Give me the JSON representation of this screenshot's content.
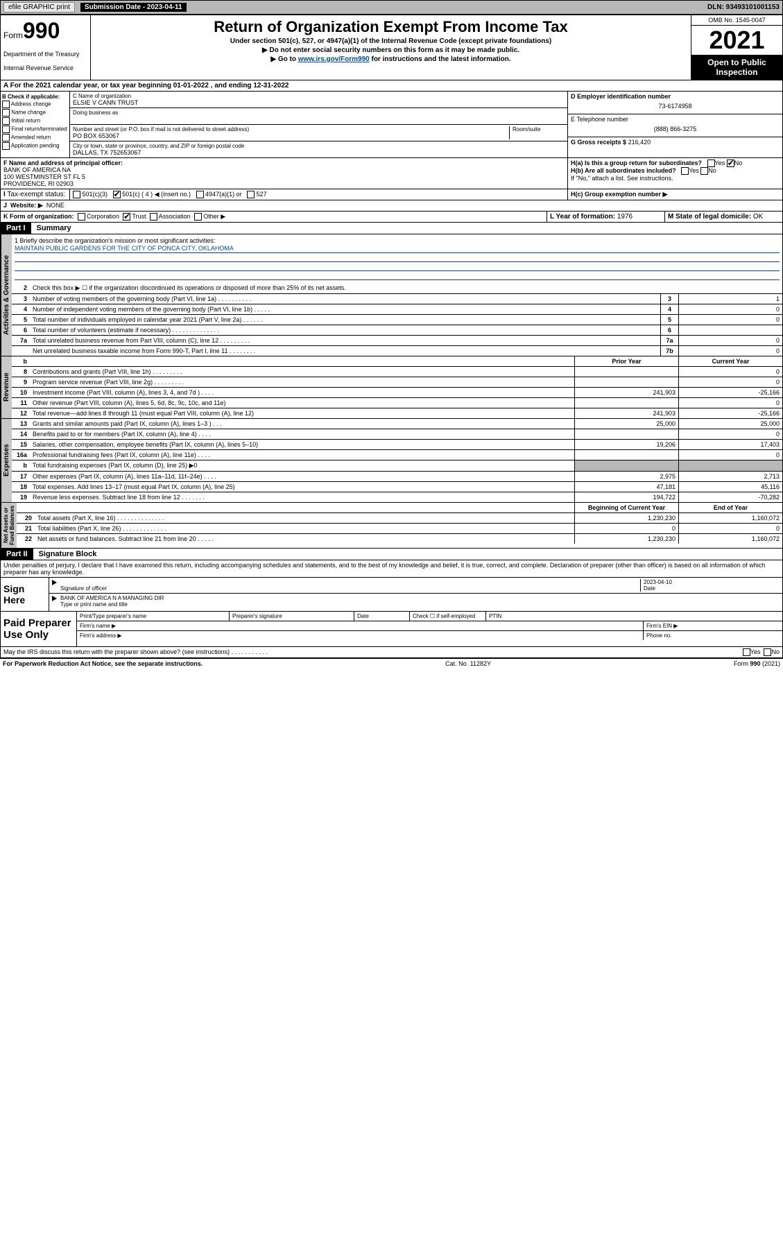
{
  "top": {
    "efile": "efile GRAPHIC print",
    "sub_label": "Submission Date - 2023-04-11",
    "dln": "DLN: 93493101001153"
  },
  "header": {
    "form_prefix": "Form",
    "form_num": "990",
    "dept": "Department of the Treasury",
    "irs": "Internal Revenue Service",
    "title": "Return of Organization Exempt From Income Tax",
    "sub1": "Under section 501(c), 527, or 4947(a)(1) of the Internal Revenue Code (except private foundations)",
    "sub2": "▶ Do not enter social security numbers on this form as it may be made public.",
    "sub3_pre": "▶ Go to ",
    "sub3_link": "www.irs.gov/Form990",
    "sub3_post": " for instructions and the latest information.",
    "omb": "OMB No. 1545-0047",
    "year": "2021",
    "open": "Open to Public Inspection"
  },
  "line_a": "A For the 2021 calendar year, or tax year beginning 01-01-2022    , and ending 12-31-2022",
  "box_b": {
    "title": "B Check if applicable:",
    "opts": [
      "Address change",
      "Name change",
      "Initial return",
      "Final return/terminated",
      "Amended return",
      "Application pending"
    ]
  },
  "box_c": {
    "label_name": "C Name of organization",
    "name": "ELSIE V CANN TRUST",
    "dba_label": "Doing business as",
    "addr_label": "Number and street (or P.O. box if mail is not delivered to street address)",
    "room_label": "Room/suite",
    "addr": "PO BOX 653067",
    "city_label": "City or town, state or province, country, and ZIP or foreign postal code",
    "city": "DALLAS, TX   752653067"
  },
  "box_d": {
    "label": "D Employer identification number",
    "val": "73-6174958"
  },
  "box_e": {
    "label": "E Telephone number",
    "val": "(888) 866-3275"
  },
  "box_g": {
    "label": "G Gross receipts $",
    "val": "216,420"
  },
  "box_f": {
    "label": "F  Name and address of principal officer:",
    "l1": "BANK OF AMERICA NA",
    "l2": "100 WESTMINSTER ST FL 5",
    "l3": "PROVIDENCE, RI  02903"
  },
  "box_h": {
    "a": "H(a)  Is this a group return for subordinates?",
    "b": "H(b)  Are all subordinates included?",
    "ifno": "If \"No,\" attach a list. See instructions.",
    "c": "H(c)  Group exemption number ▶"
  },
  "box_i": {
    "label": "Tax-exempt status:",
    "o1": "501(c)(3)",
    "o2": "501(c) ( 4 ) ◀ (insert no.)",
    "o3": "4947(a)(1) or",
    "o4": "527"
  },
  "box_j": {
    "label": "Website: ▶",
    "val": "NONE"
  },
  "box_k": "K Form of organization:",
  "k_opts": [
    "Corporation",
    "Trust",
    "Association",
    "Other ▶"
  ],
  "box_l": {
    "label": "L Year of formation:",
    "val": "1976"
  },
  "box_m": {
    "label": "M State of legal domicile:",
    "val": "OK"
  },
  "part1": {
    "hdr": "Part I",
    "title": "Summary"
  },
  "mission": {
    "label": "1   Briefly describe the organization's mission or most significant activities:",
    "text": "MAINTAIN PUBLIC GARDENS FOR THE CITY OF PONCA CITY, OKLAHOMA"
  },
  "line2": "Check this box ▶ ☐  if the organization discontinued its operations or disposed of more than 25% of its net assets.",
  "gov_rows": [
    {
      "n": "3",
      "label": "Number of voting members of the governing body (Part VI, line 1a)   .    .    .    .    .    .    .    .    .    .",
      "box": "3",
      "val": "1"
    },
    {
      "n": "4",
      "label": "Number of independent voting members of the governing body (Part VI, line 1b)   .    .    .    .    .",
      "box": "4",
      "val": "0"
    },
    {
      "n": "5",
      "label": "Total number of individuals employed in calendar year 2021 (Part V, line 2a)   .    .    .    .    .    .",
      "box": "5",
      "val": "0"
    },
    {
      "n": "6",
      "label": "Total number of volunteers (estimate if necessary)   .    .    .    .    .    .    .    .    .    .    .    .    .    .",
      "box": "6",
      "val": ""
    },
    {
      "n": "7a",
      "label": "Total unrelated business revenue from Part VIII, column (C), line 12   .    .    .    .    .    .    .    .    .",
      "box": "7a",
      "val": "0"
    },
    {
      "n": "",
      "label": "Net unrelated business taxable income from Form 990-T, Part I, line 11   .    .    .    .    .    .    .    .",
      "box": "7b",
      "val": "0"
    }
  ],
  "col_hdrs": {
    "b": "b",
    "prior": "Prior Year",
    "curr": "Current Year"
  },
  "rev_rows": [
    {
      "n": "8",
      "label": "Contributions and grants (Part VIII, line 1h)   .    .    .    .    .    .    .    .    .",
      "p": "",
      "c": "0"
    },
    {
      "n": "9",
      "label": "Program service revenue (Part VIII, line 2g)   .    .    .    .    .    .    .    .    .",
      "p": "",
      "c": "0"
    },
    {
      "n": "10",
      "label": "Investment income (Part VIII, column (A), lines 3, 4, and 7d )   .    .    .    .",
      "p": "241,903",
      "c": "-25,166"
    },
    {
      "n": "11",
      "label": "Other revenue (Part VIII, column (A), lines 5, 6d, 8c, 9c, 10c, and 11e)",
      "p": "",
      "c": "0"
    },
    {
      "n": "12",
      "label": "Total revenue—add lines 8 through 11 (must equal Part VIII, column (A), line 12)",
      "p": "241,903",
      "c": "-25,166"
    }
  ],
  "exp_rows": [
    {
      "n": "13",
      "label": "Grants and similar amounts paid (Part IX, column (A), lines 1–3 )   .    .    .",
      "p": "25,000",
      "c": "25,000"
    },
    {
      "n": "14",
      "label": "Benefits paid to or for members (Part IX, column (A), line 4)   .    .    .    .",
      "p": "",
      "c": "0"
    },
    {
      "n": "15",
      "label": "Salaries, other compensation, employee benefits (Part IX, column (A), lines 5–10)",
      "p": "19,206",
      "c": "17,403"
    },
    {
      "n": "16a",
      "label": "Professional fundraising fees (Part IX, column (A), line 11e)   .    .    .    .",
      "p": "",
      "c": "0"
    },
    {
      "n": "b",
      "label": "Total fundraising expenses (Part IX, column (D), line 25) ▶0",
      "p": "shaded",
      "c": "shaded"
    },
    {
      "n": "17",
      "label": "Other expenses (Part IX, column (A), lines 11a–11d, 11f–24e)   .    .    .    .",
      "p": "2,975",
      "c": "2,713"
    },
    {
      "n": "18",
      "label": "Total expenses. Add lines 13–17 (must equal Part IX, column (A), line 25)",
      "p": "47,181",
      "c": "45,116"
    },
    {
      "n": "19",
      "label": "Revenue less expenses. Subtract line 18 from line 12   .    .    .    .    .    .    .",
      "p": "194,722",
      "c": "-70,282"
    }
  ],
  "net_hdrs": {
    "beg": "Beginning of Current Year",
    "end": "End of Year"
  },
  "net_rows": [
    {
      "n": "20",
      "label": "Total assets (Part X, line 16)   .    .    .    .    .    .    .    .    .    .    .    .    .    .",
      "p": "1,230,230",
      "c": "1,160,072"
    },
    {
      "n": "21",
      "label": "Total liabilities (Part X, line 26)   .    .    .    .    .    .    .    .    .    .    .    .    .",
      "p": "0",
      "c": "0"
    },
    {
      "n": "22",
      "label": "Net assets or fund balances. Subtract line 21 from line 20   .    .    .    .    .",
      "p": "1,230,230",
      "c": "1,160,072"
    }
  ],
  "part2": {
    "hdr": "Part II",
    "title": "Signature Block"
  },
  "sig_decl": "Under penalties of perjury, I declare that I have examined this return, including accompanying schedules and statements, and to the best of my knowledge and belief, it is true, correct, and complete. Declaration of preparer (other than officer) is based on all information of which preparer has any knowledge.",
  "sign_here": "Sign Here",
  "sig_officer": "Signature of officer",
  "sig_date": "Date",
  "sig_date_val": "2023-04-10",
  "sig_name": "BANK OF AMERICA N A  MANAGING DIR",
  "sig_name_label": "Type or print name and title",
  "paid_prep": "Paid Preparer Use Only",
  "paid_hdrs": {
    "name": "Print/Type preparer's name",
    "sig": "Preparer's signature",
    "date": "Date",
    "check": "Check ☐ if self-employed",
    "ptin": "PTIN"
  },
  "firm_name": "Firm's name    ▶",
  "firm_ein": "Firm's EIN ▶",
  "firm_addr": "Firm's address ▶",
  "phone": "Phone no.",
  "may_irs": "May the IRS discuss this return with the preparer shown above? (see instructions)   .    .    .    .    .    .    .    .    .    .    .",
  "footer": {
    "l": "For Paperwork Reduction Act Notice, see the separate instructions.",
    "m": "Cat. No. 11282Y",
    "r": "Form 990 (2021)"
  },
  "yes": "Yes",
  "no": "No"
}
